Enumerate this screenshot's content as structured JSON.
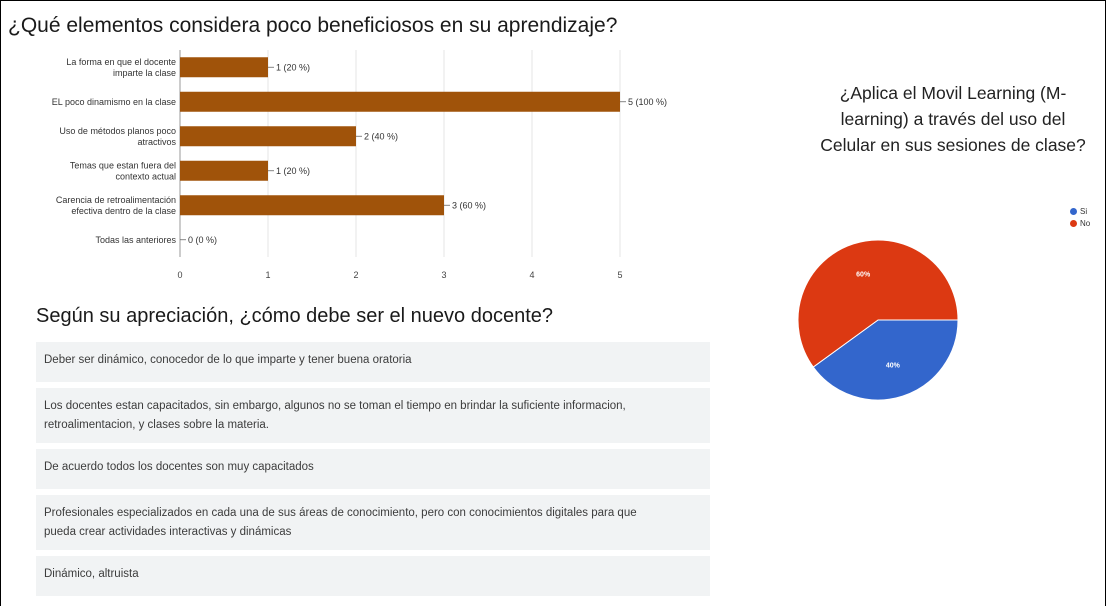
{
  "chart_data": [
    {
      "type": "bar",
      "orientation": "horizontal",
      "title": "¿Qué elementos considera poco beneficiosos en su aprendizaje?",
      "categories": [
        [
          "La forma en que el docente",
          "imparte la clase"
        ],
        [
          "EL poco dinamismo en la clase"
        ],
        [
          "Uso de métodos planos poco",
          "atractivos"
        ],
        [
          "Temas que estan fuera del",
          "contexto actual"
        ],
        [
          "Carencia de retroalimentación",
          "efectiva dentro de la clase"
        ],
        [
          "Todas las anteriores"
        ]
      ],
      "values": [
        1,
        5,
        2,
        1,
        3,
        0
      ],
      "value_labels": [
        "1 (20 %)",
        "5 (100 %)",
        "2 (40 %)",
        "1 (20 %)",
        "3 (60 %)",
        "0 (0 %)"
      ],
      "xlim": [
        0,
        5
      ],
      "xticks": [
        "0",
        "1",
        "2",
        "3",
        "4",
        "5"
      ],
      "color": "#a0530a"
    },
    {
      "type": "pie",
      "title": "¿Aplica el Movil Learning (M-learning)  a través del uso del Celular en sus sesiones de clase?",
      "title_lines": [
        "¿Aplica el Movil Learning (M-",
        "learning)  a través del uso del",
        "Celular en sus sesiones de clase?"
      ],
      "slices": [
        {
          "name": "Si",
          "value": 40,
          "label": "40%",
          "color": "#3366cc"
        },
        {
          "name": "No",
          "value": 60,
          "label": "60%",
          "color": "#dc3912"
        }
      ],
      "legend": "right"
    }
  ],
  "question2": {
    "title": "Según su apreciación, ¿cómo debe ser el nuevo docente?",
    "responses": [
      "Deber ser dinámico, conocedor de lo que imparte y tener buena oratoria",
      "Los docentes estan capacitados, sin embargo, algunos no se toman el tiempo en brindar la suficiente informacion, retroalimentacion, y clases sobre la materia.",
      "De acuerdo todos los docentes son muy capacitados",
      "Profesionales especializados en cada una de sus áreas de conocimiento, pero con conocimientos digitales para que pueda crear actividades interactivas y dinámicas",
      "Dinámico, altruista"
    ]
  }
}
